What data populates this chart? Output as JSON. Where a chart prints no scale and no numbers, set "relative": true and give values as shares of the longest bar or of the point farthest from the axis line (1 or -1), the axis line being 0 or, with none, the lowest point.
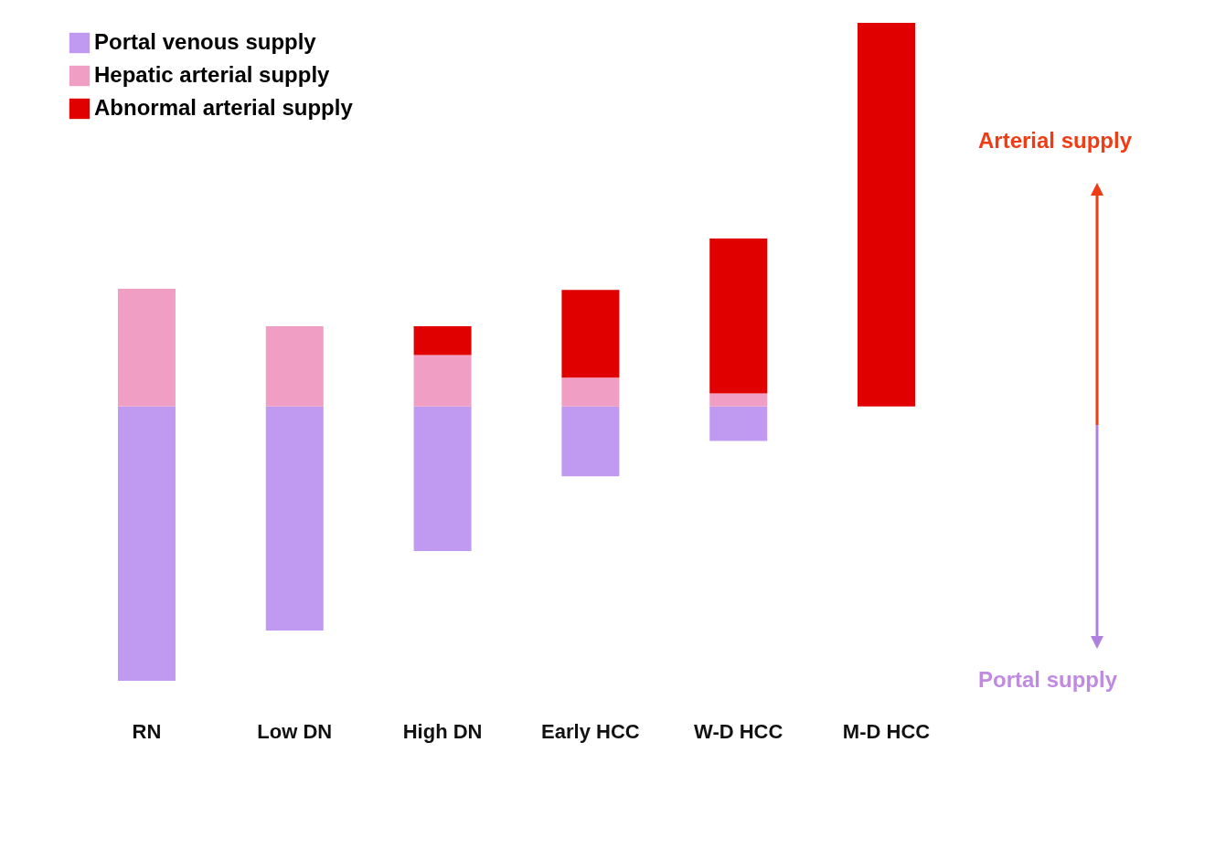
{
  "chart_data": {
    "type": "bar",
    "stacked": true,
    "relative": true,
    "legend": "top left",
    "categories": [
      "RN",
      "Low DN",
      "High DN",
      "Early HCC",
      "W-D HCC",
      "M-D HCC"
    ],
    "series": [
      {
        "name": "Portal venous supply",
        "color": "#c09af0",
        "values": [
          -0.715,
          -0.584,
          -0.377,
          -0.182,
          -0.09,
          null
        ]
      },
      {
        "name": "Hepatic arterial supply",
        "color": "#f09ec4",
        "values": [
          0.307,
          0.209,
          0.134,
          0.075,
          0.034,
          null
        ]
      },
      {
        "name": "Abnormal arterial supply",
        "color": "#e00000",
        "values": [
          null,
          null,
          0.075,
          0.229,
          0.404,
          1
        ]
      }
    ],
    "annotations": [
      "Arterial supply",
      "Portal supply"
    ]
  }
}
